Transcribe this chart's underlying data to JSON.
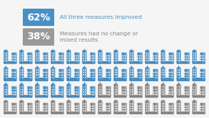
{
  "background_color": "#f5f5f5",
  "icon_color_blue": "#4a90c4",
  "icon_color_blue_light": "#7ab5d8",
  "icon_color_gray": "#8a8a8a",
  "icon_color_gray_light": "#b0b0b0",
  "icon_outline_blue": "#2e6da4",
  "icon_outline_gray": "#666666",
  "n_cols": 13,
  "n_rows": 4,
  "total_icons": 52,
  "blue_icons": 32,
  "gray_icons": 20,
  "label1_pct": "62%",
  "label1_text": "All three measures improved",
  "label1_bg": "#4a90c4",
  "label2_pct": "38%",
  "label2_text": "Measures had no change or\nmixed results",
  "label2_bg": "#999999",
  "label_text_color": "#ffffff",
  "desc_text_color": "#4a90c4",
  "desc2_text_color": "#888888"
}
